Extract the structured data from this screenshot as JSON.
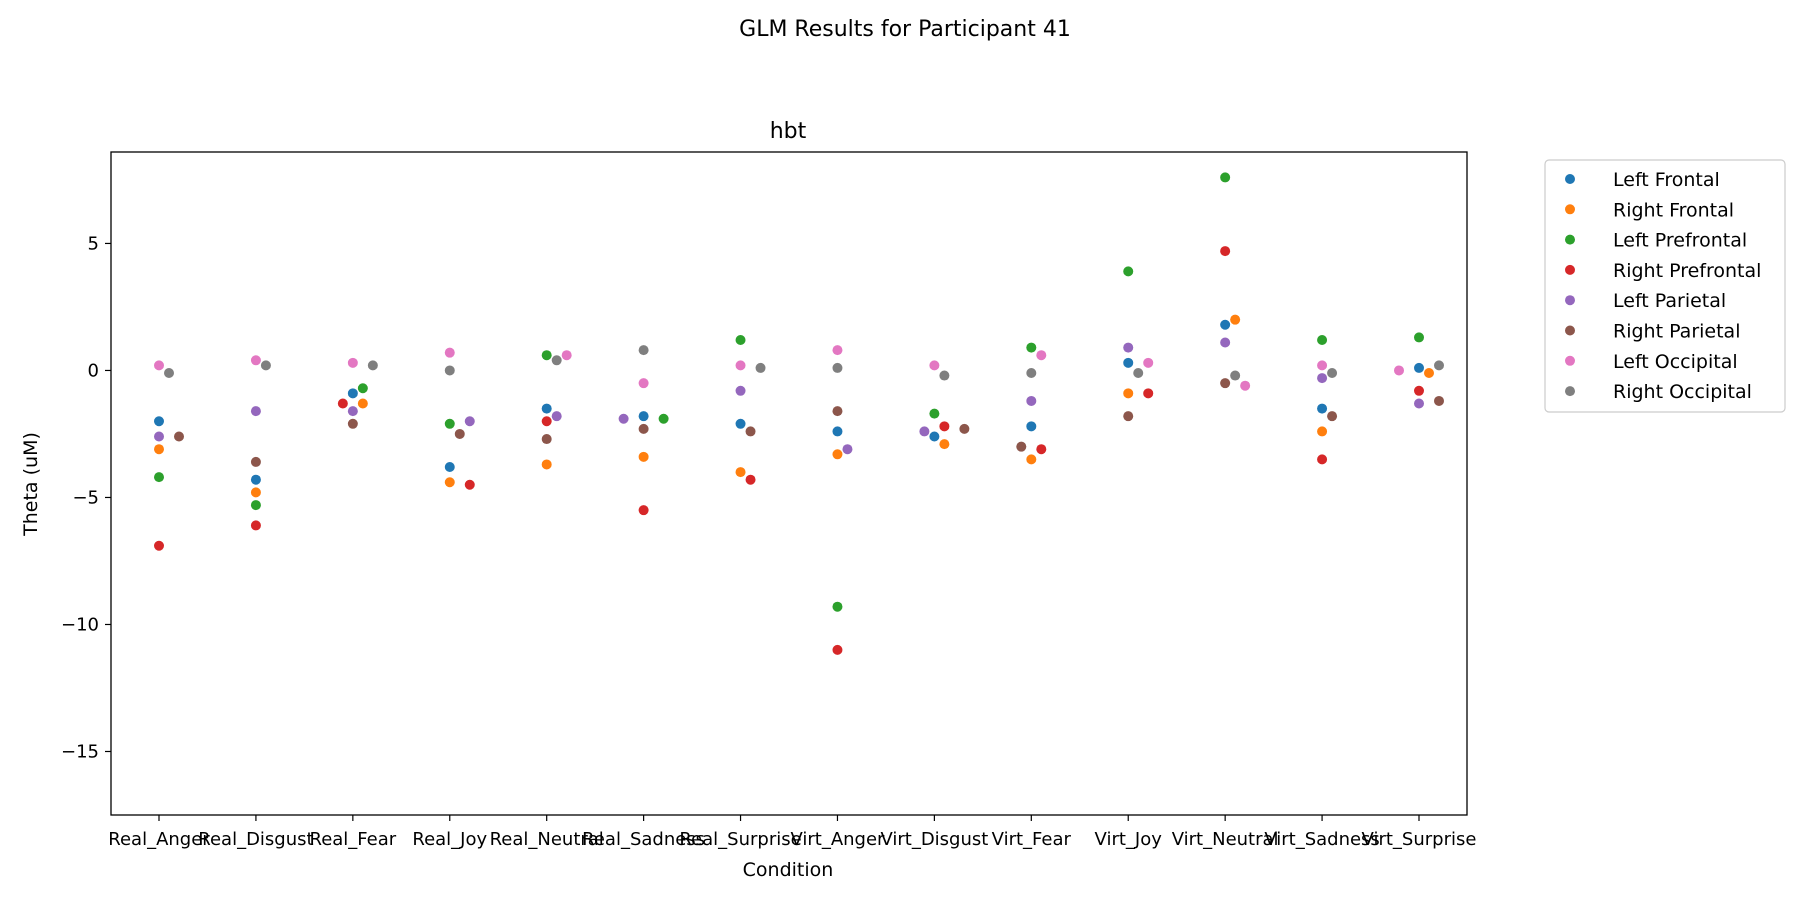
{
  "figure": {
    "suptitle": "GLM Results for Participant 41"
  },
  "chart_data": {
    "type": "scatter",
    "title": "hbt",
    "xlabel": "Condition",
    "ylabel": "Theta (uM)",
    "ylim": [
      -17.5,
      8.6
    ],
    "yticks": [
      5,
      0,
      -5,
      -10,
      -15
    ],
    "ytick_labels": [
      "5",
      "0",
      "−10",
      "−15"
    ],
    "ytick_labels_full": [
      "5",
      "0",
      "−5",
      "−10",
      "−15"
    ],
    "grid": false,
    "legend_position": "outside-right-top",
    "categories": [
      "Real_Anger",
      "Real_Disgust",
      "Real_Fear",
      "Real_Joy",
      "Real_Neutral",
      "Real_Sadness",
      "Real_Surprise",
      "Virt_Anger",
      "Virt_Disgust",
      "Virt_Fear",
      "Virt_Joy",
      "Virt_Neutral",
      "Virt_Sadness",
      "Virt_Surprise"
    ],
    "series": [
      {
        "name": "Left Frontal",
        "color": "#1f77b4",
        "values": [
          -2.0,
          -4.3,
          -0.9,
          -3.8,
          -1.5,
          -1.8,
          -2.1,
          -2.4,
          -2.6,
          -2.2,
          0.3,
          1.8,
          -1.5,
          0.1
        ]
      },
      {
        "name": "Right Frontal",
        "color": "#ff7f0e",
        "values": [
          -3.1,
          -4.8,
          -1.3,
          -4.4,
          -3.7,
          -3.4,
          -4.0,
          -3.3,
          -2.9,
          -3.5,
          -0.9,
          2.0,
          -2.4,
          -0.1
        ]
      },
      {
        "name": "Left Prefrontal",
        "color": "#2ca02c",
        "values": [
          -4.2,
          -5.3,
          -0.7,
          -2.1,
          0.6,
          -1.9,
          1.2,
          -9.3,
          -1.7,
          0.9,
          3.9,
          7.6,
          1.2,
          1.3
        ]
      },
      {
        "name": "Right Prefrontal",
        "color": "#d62728",
        "values": [
          -6.9,
          -6.1,
          -1.3,
          -4.5,
          -2.0,
          -5.5,
          -4.3,
          -11.0,
          -2.2,
          -3.1,
          -0.9,
          4.7,
          -3.5,
          -0.8
        ]
      },
      {
        "name": "Left Parietal",
        "color": "#9467bd",
        "values": [
          -2.6,
          -1.6,
          -1.6,
          -2.0,
          -1.8,
          -1.9,
          -0.8,
          -3.1,
          -2.4,
          -1.2,
          0.9,
          1.1,
          -0.3,
          -1.3
        ]
      },
      {
        "name": "Right Parietal",
        "color": "#8c564b",
        "values": [
          -2.6,
          -3.6,
          -2.1,
          -2.5,
          -2.7,
          -2.3,
          -2.4,
          -1.6,
          -2.3,
          -3.0,
          -1.8,
          -0.5,
          -1.8,
          -1.2
        ]
      },
      {
        "name": "Left Occipital",
        "color": "#e377c2",
        "values": [
          0.2,
          0.4,
          0.3,
          0.7,
          0.6,
          -0.5,
          0.2,
          0.8,
          0.2,
          0.6,
          0.3,
          -0.6,
          0.2,
          0.0
        ]
      },
      {
        "name": "Right Occipital",
        "color": "#7f7f7f",
        "values": [
          -0.1,
          0.2,
          0.2,
          0.0,
          0.4,
          0.8,
          0.1,
          0.1,
          -0.2,
          -0.1,
          -0.1,
          -0.2,
          -0.1,
          0.2
        ]
      }
    ]
  }
}
